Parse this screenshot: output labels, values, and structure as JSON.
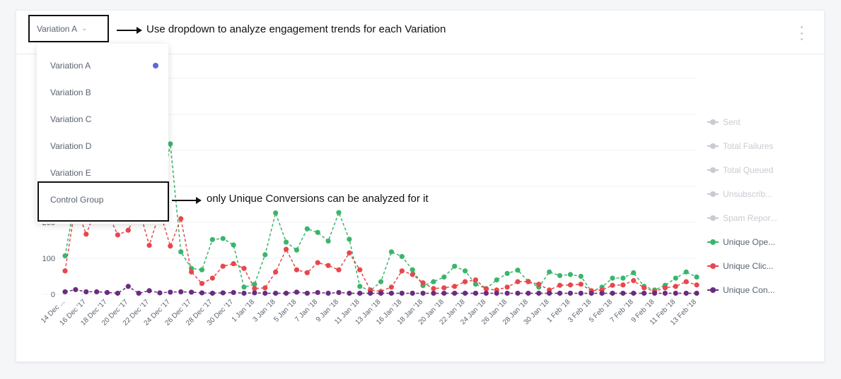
{
  "header": {
    "selected_variation": "Variation A",
    "chevron_icon": "chevron-down-icon",
    "menu_icon": "kebab-menu-icon"
  },
  "annotations": {
    "dropdown_hint": "Use dropdown to analyze engagement trends for each Variation",
    "control_hint": "only Unique Conversions can be analyzed for it"
  },
  "dropdown": {
    "items": [
      {
        "label": "Variation A",
        "selected": true
      },
      {
        "label": "Variation B"
      },
      {
        "label": "Variation C"
      },
      {
        "label": "Variation D"
      },
      {
        "label": "Variation E"
      },
      {
        "label": "Control Group"
      }
    ],
    "selected_dot_color": "#5b6ad8"
  },
  "legend": [
    {
      "label": "Sent",
      "color": "#c7cbd1",
      "active": false
    },
    {
      "label": "Total Failures",
      "color": "#c7cbd1",
      "active": false
    },
    {
      "label": "Total Queued",
      "color": "#c7cbd1",
      "active": false
    },
    {
      "label": "Unsubscrib...",
      "color": "#c7cbd1",
      "active": false
    },
    {
      "label": "Spam Repor...",
      "color": "#c7cbd1",
      "active": false
    },
    {
      "label": "Unique Ope...",
      "color": "#3bb56b",
      "active": true
    },
    {
      "label": "Unique Clic...",
      "color": "#e8474c",
      "active": true
    },
    {
      "label": "Unique Con...",
      "color": "#6a2c7e",
      "active": true
    }
  ],
  "chart_data": {
    "type": "line",
    "line_style": "dashed",
    "y_ticks": [
      0,
      100,
      200
    ],
    "ylim": [
      0,
      600
    ],
    "x_tick_labels": [
      "14 Dec ...",
      "16 Dec '17",
      "18 Dec '17",
      "20 Dec '17",
      "22 Dec '17",
      "24 Dec '17",
      "26 Dec '17",
      "28 Dec '17",
      "30 Dec '17",
      "1 Jan '18",
      "3 Jan '18",
      "5 Jan '18",
      "7 Jan '18",
      "9 Jan '18",
      "11 Jan '18",
      "13 Jan '18",
      "16 Jan '18",
      "18 Jan '18",
      "20 Jan '18",
      "22 Jan '18",
      "24 Jan '18",
      "26 Jan '18",
      "28 Jan '18",
      "30 Jan '18",
      "1 Feb '18",
      "3 Feb '18",
      "5 Feb '18",
      "7 Feb '18",
      "9 Feb '18",
      "11 Feb '18",
      "13 Feb '18"
    ],
    "x_tick_every": 2,
    "grid": true,
    "series": [
      {
        "name": "Unique Ope...",
        "color": "#3bb56b",
        "values": [
          107,
          270,
          258,
          250,
          252,
          270,
          260,
          255,
          250,
          262,
          418,
          118,
          72,
          68,
          152,
          155,
          137,
          20,
          28,
          110,
          226,
          145,
          123,
          182,
          172,
          148,
          227,
          153,
          22,
          10,
          35,
          118,
          105,
          68,
          24,
          35,
          48,
          78,
          65,
          28,
          16,
          40,
          58,
          67,
          36,
          20,
          62,
          52,
          55,
          50,
          8,
          20,
          45,
          45,
          60,
          22,
          12,
          25,
          45,
          62,
          48
        ]
      },
      {
        "name": "Unique Clic...",
        "color": "#e8474c",
        "values": [
          65,
          250,
          167,
          240,
          230,
          165,
          178,
          240,
          136,
          230,
          134,
          210,
          62,
          30,
          45,
          78,
          85,
          72,
          16,
          18,
          62,
          125,
          68,
          60,
          88,
          80,
          68,
          115,
          68,
          12,
          8,
          20,
          65,
          55,
          32,
          16,
          18,
          22,
          35,
          40,
          15,
          12,
          20,
          35,
          35,
          28,
          12,
          25,
          26,
          28,
          10,
          12,
          25,
          26,
          38,
          18,
          8,
          18,
          22,
          35,
          26
        ]
      },
      {
        "name": "Unique Con...",
        "color": "#6a2c7e",
        "values": [
          7,
          13,
          7,
          7,
          5,
          3,
          22,
          3,
          10,
          4,
          6,
          7,
          6,
          4,
          3,
          4,
          5,
          3,
          4,
          3,
          3,
          3,
          6,
          3,
          5,
          3,
          5,
          3,
          3,
          3,
          3,
          3,
          3,
          3,
          3,
          3,
          3,
          3,
          3,
          3,
          3,
          3,
          3,
          3,
          3,
          3,
          3,
          3,
          3,
          3,
          3,
          3,
          3,
          3,
          3,
          3,
          3,
          3,
          3,
          3,
          3
        ]
      }
    ]
  }
}
